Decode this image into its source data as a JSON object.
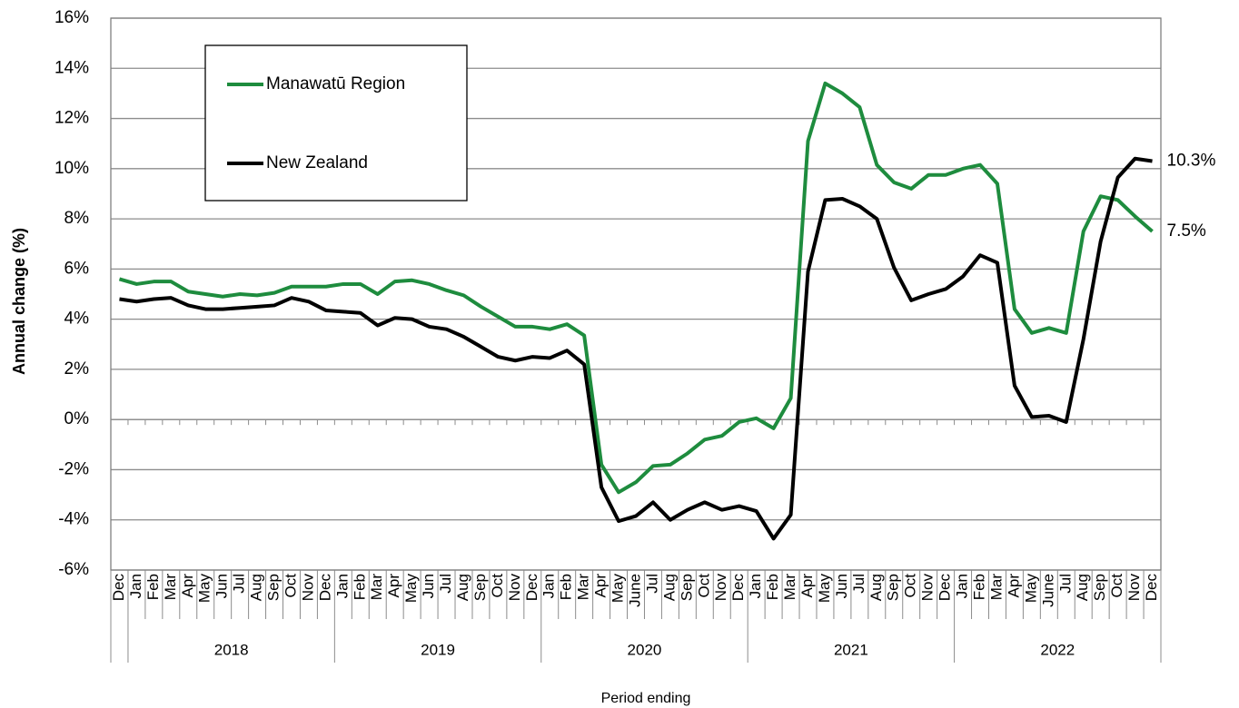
{
  "chart_data": {
    "type": "line",
    "y_label": "Annual change (%)",
    "x_label": "Period ending",
    "categories": [
      "Dec",
      "Jan",
      "Feb",
      "Mar",
      "Apr",
      "May",
      "Jun",
      "Jul",
      "Aug",
      "Sep",
      "Oct",
      "Nov",
      "Dec",
      "Jan",
      "Feb",
      "Mar",
      "Apr",
      "May",
      "Jun",
      "Jul",
      "Aug",
      "Sep",
      "Oct",
      "Nov",
      "Dec",
      "Jan",
      "Feb",
      "Mar",
      "Apr",
      "May",
      "June",
      "Jul",
      "Aug",
      "Sep",
      "Oct",
      "Nov",
      "Dec",
      "Jan",
      "Feb",
      "Mar",
      "Apr",
      "May",
      "Jun",
      "Jul",
      "Aug",
      "Sep",
      "Oct",
      "Nov",
      "Dec",
      "Jan",
      "Feb",
      "Mar",
      "Apr",
      "May",
      "June",
      "Jul",
      "Aug",
      "Sep",
      "Oct",
      "Nov",
      "Dec"
    ],
    "groups": [
      "2018",
      "2019",
      "2020",
      "2021",
      "2022"
    ],
    "series": [
      {
        "name": "Manawatū Region",
        "color": "#1e8c3e",
        "values": [
          5.6,
          5.4,
          5.5,
          5.5,
          5.1,
          5.0,
          4.9,
          5.0,
          4.95,
          5.05,
          5.3,
          5.3,
          5.3,
          5.4,
          5.4,
          5.0,
          5.5,
          5.55,
          5.4,
          5.15,
          4.95,
          4.5,
          4.1,
          3.7,
          3.7,
          3.6,
          3.8,
          3.35,
          -1.8,
          -2.9,
          -2.5,
          -1.85,
          -1.8,
          -1.35,
          -0.8,
          -0.65,
          -0.1,
          0.05,
          -0.35,
          0.85,
          11.1,
          13.4,
          13.0,
          12.45,
          10.15,
          9.45,
          9.2,
          9.75,
          9.75,
          10.0,
          10.15,
          9.4,
          4.4,
          3.45,
          3.65,
          3.45,
          7.5,
          8.9,
          8.75,
          8.1,
          7.5
        ],
        "value_labels": [
          null,
          null,
          null,
          null,
          null,
          null,
          null,
          null,
          null,
          null,
          null,
          null,
          null,
          null,
          null,
          null,
          null,
          null,
          null,
          null,
          null,
          null,
          null,
          null,
          null,
          null,
          null,
          null,
          null,
          null,
          null,
          null,
          null,
          null,
          null,
          null,
          null,
          null,
          null,
          null,
          null,
          null,
          null,
          null,
          null,
          null,
          null,
          null,
          null,
          null,
          null,
          null,
          null,
          null,
          null,
          null,
          null,
          null,
          null,
          null,
          "7.5%"
        ]
      },
      {
        "name": "New Zealand",
        "color": "#000000",
        "values": [
          4.8,
          4.7,
          4.8,
          4.85,
          4.55,
          4.4,
          4.4,
          4.45,
          4.5,
          4.55,
          4.85,
          4.7,
          4.35,
          4.3,
          4.25,
          3.75,
          4.05,
          4.0,
          3.7,
          3.6,
          3.3,
          2.9,
          2.5,
          2.35,
          2.5,
          2.45,
          2.75,
          2.2,
          -2.7,
          -4.05,
          -3.85,
          -3.3,
          -4.0,
          -3.6,
          -3.3,
          -3.6,
          -3.45,
          -3.65,
          -4.75,
          -3.8,
          5.9,
          8.75,
          8.8,
          8.5,
          8.0,
          6.05,
          4.75,
          5.0,
          5.2,
          5.7,
          6.55,
          6.25,
          1.35,
          0.1,
          0.15,
          -0.1,
          3.2,
          7.1,
          9.65,
          10.4,
          10.3
        ],
        "value_labels": [
          null,
          null,
          null,
          null,
          null,
          null,
          null,
          null,
          null,
          null,
          null,
          null,
          null,
          null,
          null,
          null,
          null,
          null,
          null,
          null,
          null,
          null,
          null,
          null,
          null,
          null,
          null,
          null,
          null,
          null,
          null,
          null,
          null,
          null,
          null,
          null,
          null,
          null,
          null,
          null,
          null,
          null,
          null,
          null,
          null,
          null,
          null,
          null,
          null,
          null,
          null,
          null,
          null,
          null,
          null,
          null,
          null,
          null,
          null,
          null,
          "10.3%"
        ]
      }
    ],
    "ylim": [
      -6,
      16
    ],
    "yticks": [
      {
        "value": -6,
        "label": "-6%"
      },
      {
        "value": -4,
        "label": "-4%"
      },
      {
        "value": -2,
        "label": "-2%"
      },
      {
        "value": 0,
        "label": "0%"
      },
      {
        "value": 2,
        "label": "2%"
      },
      {
        "value": 4,
        "label": "4%"
      },
      {
        "value": 6,
        "label": "6%"
      },
      {
        "value": 8,
        "label": "8%"
      },
      {
        "value": 10,
        "label": "10%"
      },
      {
        "value": 12,
        "label": "12%"
      },
      {
        "value": 14,
        "label": "14%"
      },
      {
        "value": 16,
        "label": "16%"
      }
    ],
    "grid": true,
    "legend": "upper left"
  }
}
